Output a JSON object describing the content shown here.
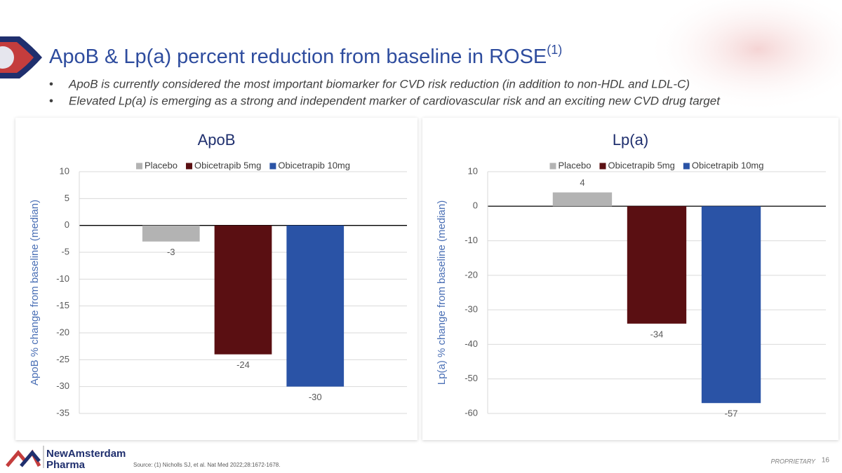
{
  "slide": {
    "title": "ApoB & Lp(a) percent reduction from baseline in ROSE",
    "title_superscript": "(1)",
    "bullets": [
      "ApoB is currently considered the most important biomarker for CVD risk reduction (in addition to non-HDL and  LDL-C)",
      "Elevated Lp(a) is emerging as a strong and independent marker of cardiovascular risk and an exciting new CVD drug target"
    ],
    "source": "Source: (1) Nicholls SJ, et al. Nat Med 2022;28:1672-1678.",
    "logo_line1": "NewAmsterdam",
    "logo_line2": "Pharma",
    "footer_label": "PROPRIETARY",
    "page_number": "16"
  },
  "chart_data": [
    {
      "type": "bar",
      "title": "ApoB",
      "ylabel": "ApoB % change from baseline (median)",
      "categories": [
        null
      ],
      "series": [
        {
          "name": "Placebo",
          "color": "#b3b3b3",
          "values": [
            -3
          ]
        },
        {
          "name": "Obicetrapib 5mg",
          "color": "#5a0f12",
          "values": [
            -24
          ]
        },
        {
          "name": "Obicetrapib 10mg",
          "color": "#2a53a6",
          "values": [
            -30
          ]
        }
      ],
      "ylim": [
        -35,
        10
      ],
      "yticks": [
        -35,
        -30,
        -25,
        -20,
        -15,
        -10,
        -5,
        0,
        5,
        10
      ],
      "grid": true,
      "legend": "top"
    },
    {
      "type": "bar",
      "title": "Lp(a)",
      "ylabel": "Lp(a) % change from baseline (median)",
      "categories": [
        null
      ],
      "series": [
        {
          "name": "Placebo",
          "color": "#b3b3b3",
          "values": [
            4
          ]
        },
        {
          "name": "Obicetrapib 5mg",
          "color": "#5a0f12",
          "values": [
            -34
          ]
        },
        {
          "name": "Obicetrapib 10mg",
          "color": "#2a53a6",
          "values": [
            -57
          ]
        }
      ],
      "ylim": [
        -60,
        10
      ],
      "yticks": [
        -60,
        -50,
        -40,
        -30,
        -20,
        -10,
        0,
        10
      ],
      "grid": true,
      "legend": "top"
    }
  ]
}
